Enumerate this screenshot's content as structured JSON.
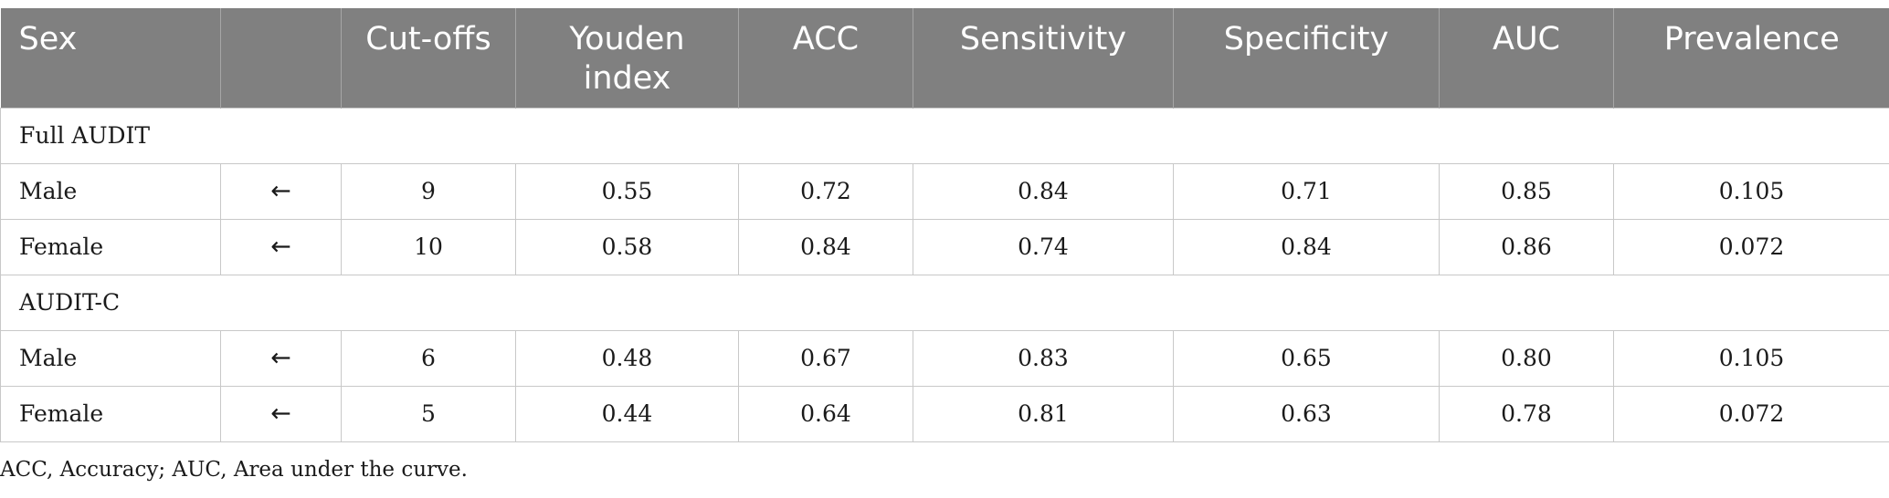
{
  "table": {
    "headers": [
      "Sex",
      "",
      "Cut-offs",
      "Youden index",
      "ACC",
      "Sensitivity",
      "Specificity",
      "AUC",
      "Prevalence"
    ],
    "sections": [
      {
        "title": "Full AUDIT",
        "rows": [
          {
            "sex": "Male",
            "arrow": "←",
            "cutoff": "9",
            "youden": "0.55",
            "acc": "0.72",
            "sensitivity": "0.84",
            "specificity": "0.71",
            "auc": "0.85",
            "prevalence": "0.105"
          },
          {
            "sex": "Female",
            "arrow": "←",
            "cutoff": "10",
            "youden": "0.58",
            "acc": "0.84",
            "sensitivity": "0.74",
            "specificity": "0.84",
            "auc": "0.86",
            "prevalence": "0.072"
          }
        ]
      },
      {
        "title": "AUDIT-C",
        "rows": [
          {
            "sex": "Male",
            "arrow": "←",
            "cutoff": "6",
            "youden": "0.48",
            "acc": "0.67",
            "sensitivity": "0.83",
            "specificity": "0.65",
            "auc": "0.80",
            "prevalence": "0.105"
          },
          {
            "sex": "Female",
            "arrow": "←",
            "cutoff": "5",
            "youden": "0.44",
            "acc": "0.64",
            "sensitivity": "0.81",
            "specificity": "0.63",
            "auc": "0.78",
            "prevalence": "0.072"
          }
        ]
      }
    ]
  },
  "footnote": "ACC, Accuracy; AUC, Area under the curve.",
  "colors": {
    "header_bg": "#808080",
    "header_text": "#ffffff",
    "grid_line": "#c8c8c8"
  }
}
